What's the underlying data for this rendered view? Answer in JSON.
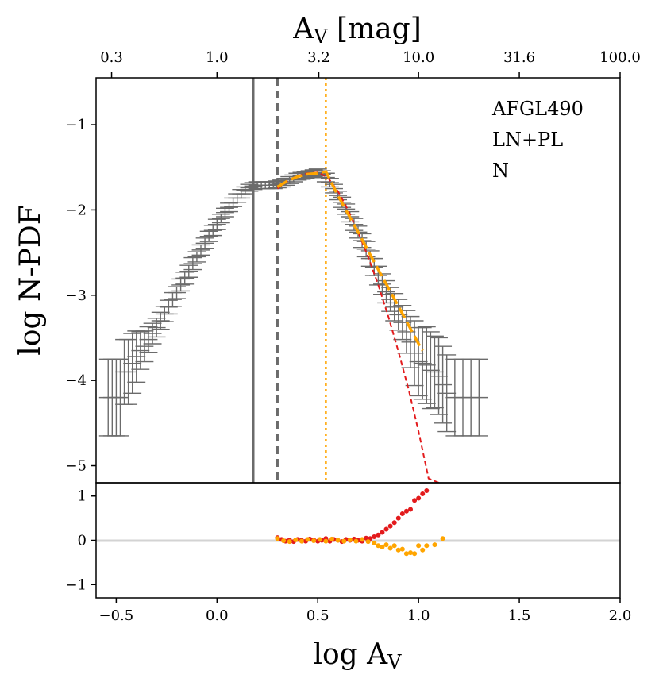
{
  "chart_data": {
    "type": "scatter",
    "title": "",
    "xlabel": "log A_V",
    "xlabel_main": "log A",
    "xlabel_sub": "V",
    "top_axis_label": "A_V [mag]",
    "top_label_main": "A",
    "top_label_sub": "V",
    "top_label_rest": " [mag]",
    "ylabel": "log N-PDF",
    "xlim": [
      -0.6,
      2.0
    ],
    "ylim": [
      -5.2,
      -0.45
    ],
    "residual_ylim": [
      -1.3,
      1.3
    ],
    "x_ticks": [
      -0.5,
      0.0,
      0.5,
      1.0,
      1.5,
      2.0
    ],
    "x_tick_labels": [
      "−0.5",
      "0.0",
      "0.5",
      "1.0",
      "1.5",
      "2.0"
    ],
    "y_ticks": [
      -1,
      -2,
      -3,
      -4,
      -5
    ],
    "y_tick_labels": [
      "−1",
      "−2",
      "−3",
      "−4",
      "−5"
    ],
    "residual_y_ticks": [
      1,
      0,
      -1
    ],
    "residual_y_tick_labels": [
      "1",
      "0",
      "−1"
    ],
    "top_ticks_logAv": [
      -0.523,
      0.0,
      0.505,
      1.0,
      1.5,
      2.0
    ],
    "top_tick_labels": [
      "0.3",
      "1.0",
      "3.2",
      "10.0",
      "31.6",
      "100.0"
    ],
    "annotations": [
      "AFGL490",
      "LN+PL",
      "N"
    ],
    "vlines": [
      {
        "x": 0.18,
        "style": "solid",
        "color": "#6b6b6b"
      },
      {
        "x": 0.3,
        "style": "dashed",
        "color": "#6b6b6b"
      },
      {
        "x": 0.54,
        "style": "dotted",
        "color": "#ffa500"
      }
    ],
    "errorbar_series": {
      "name": "N-PDF data",
      "color": "#6b6b6b",
      "x_half_width": 0.045,
      "points": [
        [
          -0.54,
          -4.2,
          0.45
        ],
        [
          -0.52,
          -4.2,
          0.45
        ],
        [
          -0.5,
          -4.2,
          0.45
        ],
        [
          -0.48,
          -4.2,
          0.45
        ],
        [
          -0.46,
          -3.9,
          0.38
        ],
        [
          -0.44,
          -3.9,
          0.38
        ],
        [
          -0.42,
          -3.8,
          0.35
        ],
        [
          -0.4,
          -3.72,
          0.3
        ],
        [
          -0.38,
          -3.65,
          0.22
        ],
        [
          -0.36,
          -3.6,
          0.18
        ],
        [
          -0.34,
          -3.52,
          0.15
        ],
        [
          -0.32,
          -3.45,
          0.12
        ],
        [
          -0.3,
          -3.38,
          0.11
        ],
        [
          -0.28,
          -3.3,
          0.1
        ],
        [
          -0.26,
          -3.22,
          0.09
        ],
        [
          -0.24,
          -3.14,
          0.08
        ],
        [
          -0.22,
          -3.05,
          0.08
        ],
        [
          -0.2,
          -2.97,
          0.07
        ],
        [
          -0.18,
          -2.88,
          0.07
        ],
        [
          -0.16,
          -2.8,
          0.07
        ],
        [
          -0.14,
          -2.72,
          0.07
        ],
        [
          -0.12,
          -2.63,
          0.07
        ],
        [
          -0.1,
          -2.55,
          0.06
        ],
        [
          -0.08,
          -2.47,
          0.06
        ],
        [
          -0.06,
          -2.39,
          0.06
        ],
        [
          -0.04,
          -2.31,
          0.06
        ],
        [
          -0.02,
          -2.24,
          0.06
        ],
        [
          0.0,
          -2.17,
          0.06
        ],
        [
          0.02,
          -2.1,
          0.05
        ],
        [
          0.04,
          -2.03,
          0.05
        ],
        [
          0.06,
          -1.97,
          0.05
        ],
        [
          0.08,
          -1.91,
          0.05
        ],
        [
          0.1,
          -1.86,
          0.05
        ],
        [
          0.12,
          -1.81,
          0.05
        ],
        [
          0.14,
          -1.77,
          0.04
        ],
        [
          0.16,
          -1.74,
          0.04
        ],
        [
          0.18,
          -1.72,
          0.04
        ],
        [
          0.2,
          -1.71,
          0.04
        ],
        [
          0.22,
          -1.71,
          0.04
        ],
        [
          0.24,
          -1.71,
          0.04
        ],
        [
          0.26,
          -1.71,
          0.04
        ],
        [
          0.28,
          -1.71,
          0.04
        ],
        [
          0.3,
          -1.7,
          0.04
        ],
        [
          0.32,
          -1.69,
          0.04
        ],
        [
          0.34,
          -1.67,
          0.04
        ],
        [
          0.36,
          -1.65,
          0.04
        ],
        [
          0.38,
          -1.63,
          0.04
        ],
        [
          0.4,
          -1.61,
          0.04
        ],
        [
          0.42,
          -1.6,
          0.04
        ],
        [
          0.44,
          -1.59,
          0.04
        ],
        [
          0.46,
          -1.58,
          0.04
        ],
        [
          0.48,
          -1.57,
          0.04
        ],
        [
          0.5,
          -1.56,
          0.04
        ],
        [
          0.52,
          -1.58,
          0.04
        ],
        [
          0.54,
          -1.62,
          0.05
        ],
        [
          0.56,
          -1.68,
          0.05
        ],
        [
          0.58,
          -1.75,
          0.05
        ],
        [
          0.6,
          -1.83,
          0.05
        ],
        [
          0.62,
          -1.91,
          0.06
        ],
        [
          0.64,
          -1.99,
          0.06
        ],
        [
          0.66,
          -2.08,
          0.06
        ],
        [
          0.68,
          -2.17,
          0.07
        ],
        [
          0.7,
          -2.26,
          0.07
        ],
        [
          0.72,
          -2.36,
          0.08
        ],
        [
          0.74,
          -2.46,
          0.09
        ],
        [
          0.76,
          -2.57,
          0.09
        ],
        [
          0.78,
          -2.67,
          0.1
        ],
        [
          0.8,
          -2.77,
          0.11
        ],
        [
          0.82,
          -2.87,
          0.12
        ],
        [
          0.84,
          -2.96,
          0.13
        ],
        [
          0.86,
          -3.05,
          0.14
        ],
        [
          0.88,
          -3.14,
          0.16
        ],
        [
          0.9,
          -3.23,
          0.18
        ],
        [
          0.92,
          -3.32,
          0.2
        ],
        [
          0.94,
          -3.43,
          0.25
        ],
        [
          0.96,
          -3.55,
          0.3
        ],
        [
          0.98,
          -3.68,
          0.38
        ],
        [
          1.0,
          -3.78,
          0.4
        ],
        [
          1.02,
          -3.8,
          0.42
        ],
        [
          1.04,
          -3.82,
          0.45
        ],
        [
          1.06,
          -3.88,
          0.45
        ],
        [
          1.08,
          -3.9,
          0.42
        ],
        [
          1.1,
          -3.95,
          0.45
        ],
        [
          1.12,
          -4.05,
          0.45
        ],
        [
          1.14,
          -4.15,
          0.45
        ],
        [
          1.18,
          -4.2,
          0.45
        ],
        [
          1.22,
          -4.2,
          0.45
        ],
        [
          1.26,
          -4.2,
          0.45
        ],
        [
          1.3,
          -4.2,
          0.45
        ]
      ]
    },
    "fit_lines": [
      {
        "name": "LN fit",
        "style": "dashed",
        "color": "#e31a1c",
        "points": [
          [
            0.3,
            -1.75
          ],
          [
            0.35,
            -1.66
          ],
          [
            0.4,
            -1.6
          ],
          [
            0.45,
            -1.57
          ],
          [
            0.5,
            -1.56
          ],
          [
            0.55,
            -1.62
          ],
          [
            0.6,
            -1.78
          ],
          [
            0.65,
            -2.0
          ],
          [
            0.7,
            -2.26
          ],
          [
            0.75,
            -2.55
          ],
          [
            0.8,
            -2.88
          ],
          [
            0.85,
            -3.25
          ],
          [
            0.9,
            -3.66
          ],
          [
            0.95,
            -4.1
          ],
          [
            1.0,
            -4.6
          ],
          [
            1.05,
            -5.15
          ],
          [
            1.1,
            -5.2
          ]
        ]
      },
      {
        "name": "LN+PL fit",
        "style": "dashed",
        "color": "#ffa500",
        "points": [
          [
            0.3,
            -1.73
          ],
          [
            0.35,
            -1.66
          ],
          [
            0.4,
            -1.61
          ],
          [
            0.45,
            -1.58
          ],
          [
            0.5,
            -1.57
          ],
          [
            0.54,
            -1.55
          ],
          [
            0.6,
            -1.83
          ],
          [
            0.7,
            -2.26
          ],
          [
            0.8,
            -2.7
          ],
          [
            0.9,
            -3.13
          ],
          [
            1.0,
            -3.57
          ],
          [
            1.02,
            -3.65
          ]
        ]
      }
    ],
    "residual_series": [
      {
        "name": "LN residuals",
        "color": "#e31a1c",
        "points": [
          [
            0.3,
            0.06
          ],
          [
            0.32,
            0.02
          ],
          [
            0.34,
            -0.02
          ],
          [
            0.36,
            0.01
          ],
          [
            0.38,
            -0.03
          ],
          [
            0.4,
            0.02
          ],
          [
            0.42,
            0.0
          ],
          [
            0.44,
            -0.02
          ],
          [
            0.46,
            0.03
          ],
          [
            0.48,
            0.01
          ],
          [
            0.5,
            -0.02
          ],
          [
            0.52,
            0.0
          ],
          [
            0.54,
            0.04
          ],
          [
            0.56,
            -0.02
          ],
          [
            0.58,
            0.02
          ],
          [
            0.6,
            0.0
          ],
          [
            0.62,
            -0.03
          ],
          [
            0.64,
            0.02
          ],
          [
            0.66,
            0.0
          ],
          [
            0.68,
            0.03
          ],
          [
            0.7,
            0.0
          ],
          [
            0.72,
            -0.02
          ],
          [
            0.74,
            0.05
          ],
          [
            0.76,
            0.04
          ],
          [
            0.78,
            0.08
          ],
          [
            0.8,
            0.12
          ],
          [
            0.82,
            0.18
          ],
          [
            0.84,
            0.25
          ],
          [
            0.86,
            0.32
          ],
          [
            0.88,
            0.4
          ],
          [
            0.9,
            0.5
          ],
          [
            0.92,
            0.6
          ],
          [
            0.94,
            0.66
          ],
          [
            0.96,
            0.7
          ],
          [
            0.98,
            0.9
          ],
          [
            1.0,
            0.95
          ],
          [
            1.02,
            1.05
          ],
          [
            1.04,
            1.12
          ]
        ]
      },
      {
        "name": "LN+PL residuals",
        "color": "#ffa500",
        "points": [
          [
            0.3,
            0.04
          ],
          [
            0.33,
            -0.01
          ],
          [
            0.36,
            -0.03
          ],
          [
            0.39,
            0.01
          ],
          [
            0.42,
            -0.02
          ],
          [
            0.45,
            0.02
          ],
          [
            0.48,
            -0.01
          ],
          [
            0.51,
            0.02
          ],
          [
            0.54,
            -0.02
          ],
          [
            0.57,
            0.03
          ],
          [
            0.6,
            0.0
          ],
          [
            0.63,
            -0.02
          ],
          [
            0.66,
            0.01
          ],
          [
            0.69,
            -0.02
          ],
          [
            0.72,
            0.02
          ],
          [
            0.75,
            -0.03
          ],
          [
            0.78,
            -0.06
          ],
          [
            0.8,
            -0.12
          ],
          [
            0.82,
            -0.15
          ],
          [
            0.84,
            -0.1
          ],
          [
            0.86,
            -0.18
          ],
          [
            0.88,
            -0.12
          ],
          [
            0.9,
            -0.22
          ],
          [
            0.92,
            -0.2
          ],
          [
            0.94,
            -0.3
          ],
          [
            0.96,
            -0.28
          ],
          [
            0.98,
            -0.3
          ],
          [
            1.0,
            -0.12
          ],
          [
            1.02,
            -0.22
          ],
          [
            1.04,
            -0.12
          ],
          [
            1.08,
            -0.1
          ],
          [
            1.12,
            0.04
          ]
        ]
      }
    ]
  }
}
